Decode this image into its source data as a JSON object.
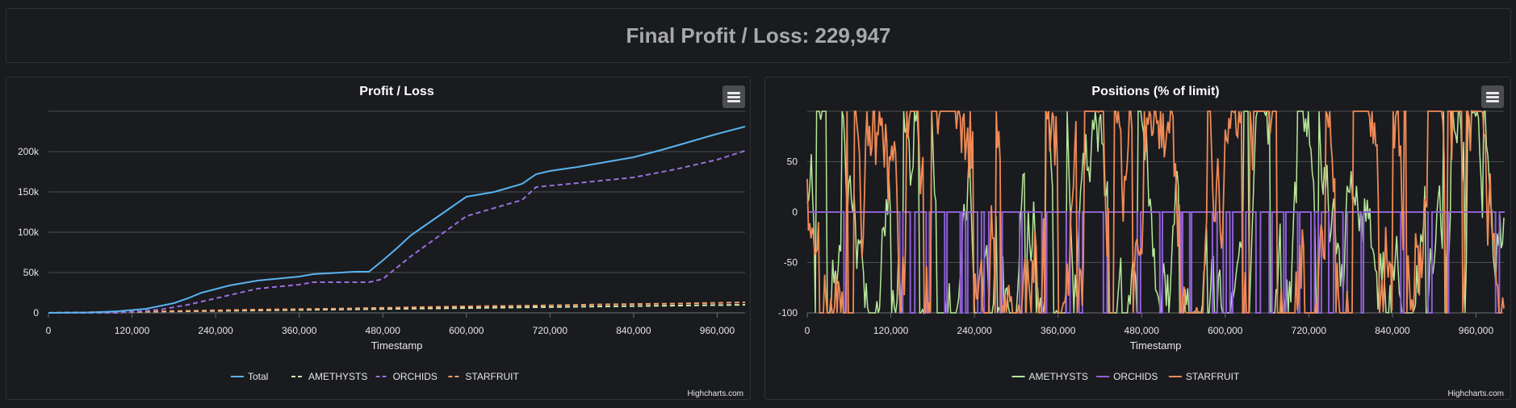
{
  "header": {
    "title": "Final Profit / Loss: 229,947"
  },
  "credits": "Highcharts.com",
  "colors": {
    "Total": "#58b3f0",
    "AMETHYSTS": "#d9e8b2",
    "ORCHIDS": "#9b6fe0",
    "STARFRUIT": "#f2a06a",
    "ORCHIDS_pos": "#8e5fd6",
    "STARFRUIT_pos": "#f08a56",
    "AMETHYSTS_pos": "#b6e89a"
  },
  "chart_data": [
    {
      "type": "line",
      "title": "Profit / Loss",
      "xlabel": "Timestamp",
      "ylabel": "",
      "xlim": [
        0,
        1000000
      ],
      "ylim": [
        0,
        250000
      ],
      "x_ticks": [
        "0",
        "120,000",
        "240,000",
        "360,000",
        "480,000",
        "600,000",
        "720,000",
        "840,000",
        "960,000"
      ],
      "y_ticks": [
        "0",
        "50k",
        "100k",
        "150k",
        "200k"
      ],
      "legend": "bottom-center",
      "series": [
        {
          "name": "Total",
          "style": "solid",
          "x": [
            0,
            60000,
            100000,
            140000,
            180000,
            200000,
            220000,
            260000,
            300000,
            360000,
            380000,
            400000,
            420000,
            440000,
            460000,
            480000,
            500000,
            520000,
            540000,
            560000,
            580000,
            600000,
            620000,
            640000,
            660000,
            680000,
            700000,
            720000,
            760000,
            800000,
            840000,
            880000,
            920000,
            960000,
            1000000
          ],
          "y": [
            0,
            500,
            2000,
            5000,
            12000,
            18000,
            25000,
            34000,
            40000,
            45000,
            48000,
            49000,
            50000,
            51000,
            51000,
            65000,
            80000,
            96000,
            108000,
            120000,
            132000,
            144000,
            147000,
            150000,
            155000,
            160000,
            172000,
            176000,
            181000,
            187000,
            193000,
            202000,
            212000,
            222000,
            231000
          ]
        },
        {
          "name": "AMETHYSTS",
          "style": "dash",
          "x": [
            0,
            200000,
            400000,
            600000,
            800000,
            1000000
          ],
          "y": [
            0,
            2000,
            4000,
            6000,
            8000,
            10000
          ]
        },
        {
          "name": "ORCHIDS",
          "style": "dash",
          "x": [
            0,
            100000,
            160000,
            200000,
            260000,
            300000,
            360000,
            380000,
            400000,
            460000,
            480000,
            520000,
            560000,
            600000,
            640000,
            680000,
            700000,
            760000,
            840000,
            900000,
            960000,
            1000000
          ],
          "y": [
            0,
            0,
            4000,
            10000,
            22000,
            30000,
            35000,
            38000,
            38000,
            38000,
            42000,
            70000,
            95000,
            120000,
            130000,
            140000,
            156000,
            161000,
            168000,
            178000,
            190000,
            201000
          ]
        },
        {
          "name": "STARFRUIT",
          "style": "dash",
          "x": [
            0,
            100000,
            200000,
            300000,
            400000,
            500000,
            600000,
            700000,
            800000,
            900000,
            1000000
          ],
          "y": [
            0,
            1000,
            2500,
            4000,
            5000,
            6500,
            8000,
            9000,
            10500,
            11500,
            13000
          ]
        }
      ]
    },
    {
      "type": "line",
      "title": "Positions (% of limit)",
      "xlabel": "Timestamp",
      "ylabel": "",
      "xlim": [
        0,
        1000000
      ],
      "ylim": [
        -100,
        100
      ],
      "x_ticks": [
        "0",
        "120,000",
        "240,000",
        "360,000",
        "480,000",
        "600,000",
        "720,000",
        "840,000",
        "960,000"
      ],
      "y_ticks": [
        "-100",
        "-50",
        "0",
        "50"
      ],
      "legend": "bottom-center",
      "series": [
        {
          "name": "AMETHYSTS"
        },
        {
          "name": "ORCHIDS"
        },
        {
          "name": "STARFRUIT"
        }
      ]
    }
  ],
  "pnl_chart": {
    "title": "Profit / Loss",
    "menu": "chart-context-menu"
  },
  "pos_chart": {
    "title": "Positions (% of limit)",
    "menu": "chart-context-menu"
  }
}
